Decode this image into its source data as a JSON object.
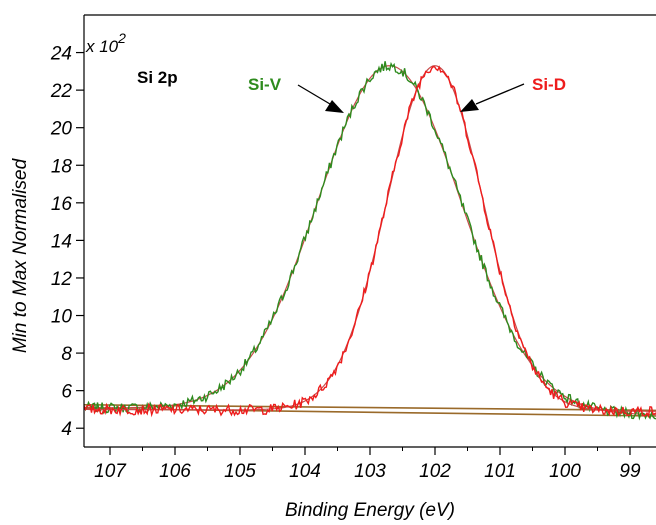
{
  "chart_data": {
    "type": "line",
    "title": "",
    "xlabel": "Binding Energy (eV)",
    "ylabel": "Min to Max Normalised",
    "x_multiplier_label": "",
    "y_multiplier_base": "x 10",
    "y_multiplier_exp": "2",
    "xlim": [
      107.4,
      98.6
    ],
    "ylim": [
      3.0,
      26.0
    ],
    "x_reversed": true,
    "grid": false,
    "legend": "none",
    "x_ticks": [
      "107",
      "106",
      "105",
      "104",
      "103",
      "102",
      "101",
      "100",
      "99"
    ],
    "y_ticks": [
      "4",
      "6",
      "8",
      "10",
      "12",
      "14",
      "16",
      "18",
      "20",
      "22",
      "24"
    ],
    "annotations": {
      "spectrum_label": "Si 2p",
      "si_v": "Si-V",
      "si_d": "Si-D"
    },
    "colors": {
      "si_v": "#2e8b1e",
      "si_d": "#ee1c1c",
      "fit": "#c84a4a",
      "background": "#9a6a2a",
      "arrow": "#000000"
    },
    "series": [
      {
        "name": "Si-V",
        "peak_center": 102.7,
        "peak_max": 23.3,
        "fwhm": 2.6,
        "baseline_start": 5.1,
        "baseline_end": 4.7,
        "x": [
          107.4,
          107.0,
          106.5,
          106.0,
          105.5,
          105.0,
          104.5,
          104.0,
          103.6,
          103.3,
          103.0,
          102.8,
          102.6,
          102.3,
          102.0,
          101.7,
          101.4,
          101.0,
          100.6,
          100.2,
          99.8,
          99.4,
          99.0,
          98.6
        ],
        "y": [
          5.0,
          5.1,
          5.2,
          5.5,
          6.1,
          7.6,
          10.4,
          14.8,
          19.0,
          21.6,
          23.0,
          23.3,
          22.9,
          21.4,
          19.2,
          16.1,
          12.8,
          9.2,
          6.9,
          5.7,
          5.1,
          4.9,
          4.8,
          4.7
        ]
      },
      {
        "name": "Si-D",
        "peak_center": 102.0,
        "peak_max": 23.3,
        "fwhm": 1.75,
        "baseline_start": 5.0,
        "baseline_end": 4.9,
        "x": [
          107.4,
          107.0,
          106.5,
          106.0,
          105.5,
          105.0,
          104.5,
          104.0,
          103.6,
          103.3,
          103.0,
          102.7,
          102.4,
          102.1,
          101.9,
          101.6,
          101.3,
          101.0,
          100.7,
          100.4,
          100.0,
          99.5,
          99.0,
          98.6
        ],
        "y": [
          5.0,
          5.0,
          5.0,
          5.0,
          5.1,
          5.2,
          5.5,
          6.3,
          8.2,
          10.8,
          14.7,
          18.8,
          21.9,
          23.3,
          22.9,
          20.2,
          16.1,
          11.7,
          8.4,
          6.6,
          5.6,
          5.2,
          5.0,
          4.9
        ]
      }
    ],
    "background_lines": [
      {
        "x": [
          107.4,
          98.6
        ],
        "y": [
          5.25,
          4.95
        ]
      },
      {
        "x": [
          107.4,
          98.6
        ],
        "y": [
          5.05,
          4.65
        ]
      }
    ]
  }
}
